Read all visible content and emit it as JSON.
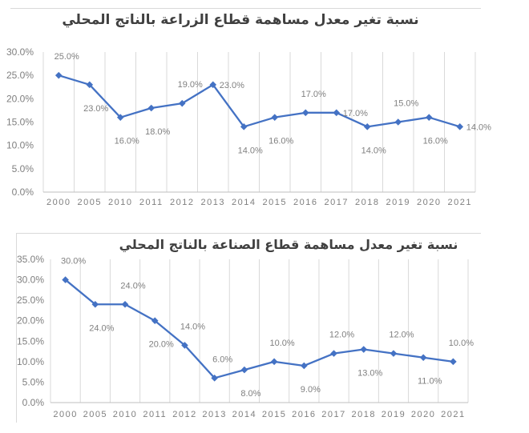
{
  "page": {
    "background": "#FFFFFF"
  },
  "chart_data": [
    {
      "type": "line",
      "title": "نسبة تغير معدل مساهمة قطاع الزراعة بالناتج المحلي",
      "categories": [
        "2000",
        "2005",
        "2010",
        "2011",
        "2012",
        "2013",
        "2014",
        "2015",
        "2016",
        "2017",
        "2018",
        "2019",
        "2020",
        "2021"
      ],
      "values": [
        25,
        23,
        16,
        18,
        19,
        23,
        14,
        16,
        17,
        17,
        14,
        15,
        16,
        14
      ],
      "labels": [
        "25.0%",
        "23.0%",
        "16.0%",
        "18.0%",
        "19.0%",
        "23.0%",
        "14.0%",
        "16.0%",
        "17.0%",
        "17.0%",
        "14.0%",
        "15.0%",
        "16.0%",
        "14.0%"
      ],
      "label_positions": [
        "above",
        "below",
        "below",
        "below",
        "above",
        "right",
        "below",
        "below",
        "above",
        "right",
        "below",
        "above",
        "below",
        "right"
      ],
      "y_ticks": [
        "30.0%",
        "25.0%",
        "20.0%",
        "15.0%",
        "10.0%",
        "5.0%",
        "0.0%"
      ],
      "ylim": [
        0,
        30
      ],
      "y_step": 5,
      "xlabel": "",
      "ylabel": "",
      "grid": "vertical-only",
      "legend": "none",
      "line_color": "#4472C4",
      "marker": "diamond",
      "data_label_color": "#808080",
      "tick_label_color": "#7F7F7F",
      "gridline_color": "#D9D9D9",
      "axis_line_color": "#BFBFBF",
      "title_color": "#404040"
    },
    {
      "type": "line",
      "title": "نسبة تغير معدل مساهمة قطاع الصناعة بالناتج المحلي",
      "categories": [
        "2000",
        "2005",
        "2010",
        "2011",
        "2012",
        "2013",
        "2014",
        "2015",
        "2016",
        "2017",
        "2018",
        "2019",
        "2020",
        "2021"
      ],
      "values": [
        30,
        24,
        24,
        20,
        14,
        6,
        8,
        10,
        9,
        12,
        13,
        12,
        11,
        10
      ],
      "labels": [
        "30.0%",
        "24.0%",
        "24.0%",
        "20.0%",
        "14.0%",
        "6.0%",
        "8.0%",
        "10.0%",
        "9.0%",
        "12.0%",
        "13.0%",
        "12.0%",
        "11.0%",
        "10.0%"
      ],
      "label_positions": [
        "above",
        "below",
        "above",
        "below",
        "above",
        "above",
        "below",
        "above",
        "below",
        "above",
        "below",
        "above",
        "below",
        "above"
      ],
      "y_ticks": [
        "35.0%",
        "30.0%",
        "25.0%",
        "20.0%",
        "15.0%",
        "10.0%",
        "5.0%",
        "0.0%"
      ],
      "ylim": [
        0,
        35
      ],
      "y_step": 5,
      "xlabel": "",
      "ylabel": "",
      "grid": "vertical-only",
      "legend": "none",
      "line_color": "#4472C4",
      "marker": "diamond",
      "data_label_color": "#808080",
      "tick_label_color": "#7F7F7F",
      "gridline_color": "#D9D9D9",
      "axis_line_color": "#BFBFBF",
      "title_color": "#404040"
    }
  ]
}
